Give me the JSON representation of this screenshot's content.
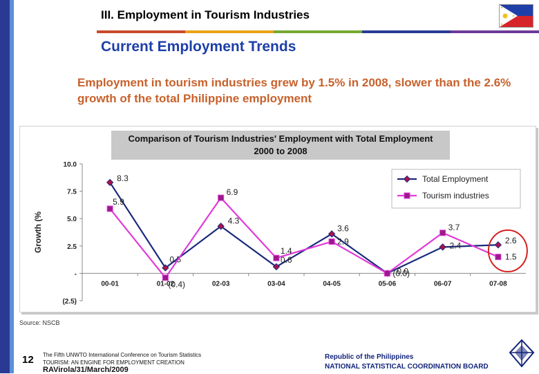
{
  "header": {
    "title": "III. Employment in Tourism Industries",
    "stripe_colors": [
      "#c94a2a",
      "#e8a21a",
      "#76a830",
      "#2a3a94",
      "#6c3a98"
    ]
  },
  "subtitle": "Current Employment Trends",
  "intro": "Employment in tourism industries grew by 1.5% in 2008, slower than the 2.6% growth of the total Philippine employment",
  "chart_data": {
    "type": "line",
    "title": "Comparison of Tourism Industries' Employment with Total Employment",
    "subtitle": "2000 to 2008",
    "ylabel": "Growth (%",
    "xlabel": "",
    "categories": [
      "00-01",
      "01-02",
      "02-03",
      "03-04",
      "04-05",
      "05-06",
      "06-07",
      "07-08"
    ],
    "ylim": [
      -2.5,
      10.0
    ],
    "yticks": [
      10.0,
      7.5,
      5.0,
      2.5,
      0,
      -2.5
    ],
    "ytick_labels": [
      "10.0",
      "7.5",
      "5.0",
      "2.5",
      "-",
      "(2.5)"
    ],
    "grid": false,
    "legend_position": "top-right",
    "series": [
      {
        "name": "Total Employment",
        "color": "#1a2a7a",
        "marker": "diamond",
        "values": [
          8.3,
          0.5,
          4.3,
          0.6,
          3.6,
          0.0,
          2.4,
          2.6
        ],
        "labels": [
          "8.3",
          "0.5",
          "4.3",
          "0.6",
          "3.6",
          "0.0",
          "2.4",
          "2.6"
        ]
      },
      {
        "name": "Tourism industries",
        "color": "#e03ad8",
        "marker": "square",
        "values": [
          5.9,
          -0.4,
          6.9,
          1.4,
          2.9,
          0.0,
          3.7,
          1.5
        ],
        "labels": [
          "5.9",
          "(0.4)",
          "6.9",
          "1.4",
          "2.9",
          "(0.0)",
          "3.7",
          "1.5"
        ]
      }
    ],
    "highlight": {
      "category": "07-08",
      "color": "#d42020"
    }
  },
  "source": "Source: NSCB",
  "footer": {
    "page_number": "12",
    "conference_lines": [
      "The Fifth UNWTO International Conference on Tourism Statistics",
      "TOURISM: AN ENGINE FOR EMPLOYMENT CREATION",
      "RAVirola/31/March/2009"
    ],
    "org_lines": [
      "Republic of the Philippines",
      "NATIONAL STATISTICAL COORDINATION BOARD"
    ]
  }
}
